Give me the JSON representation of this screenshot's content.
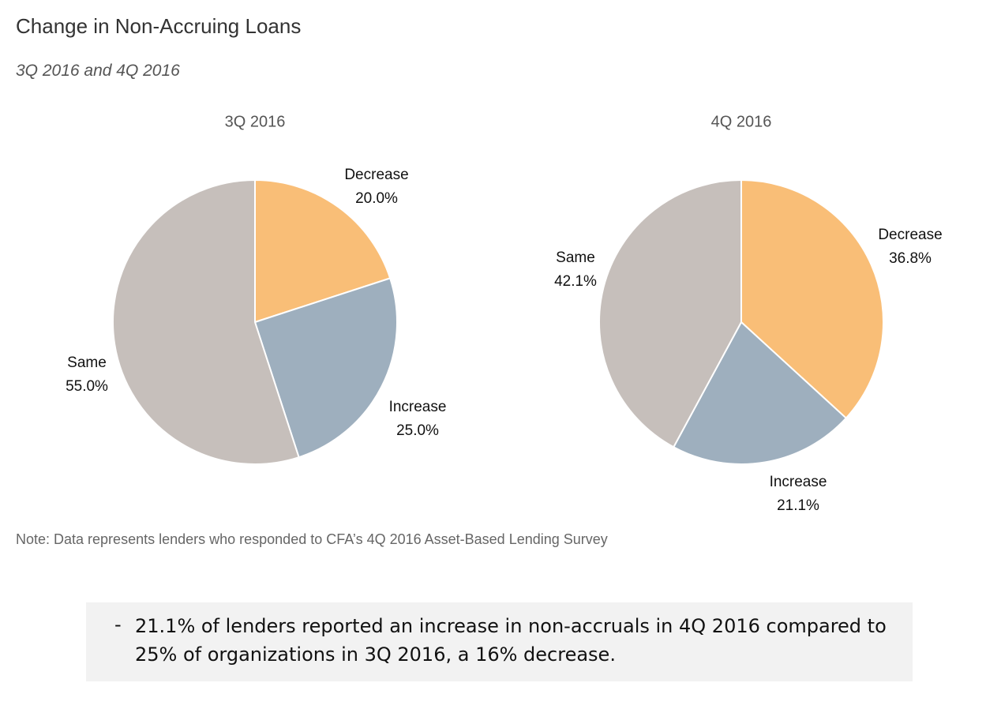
{
  "title": "Change in Non-Accruing Loans",
  "subtitle": "3Q 2016 and 4Q 2016",
  "colors": {
    "Decrease": "#f9be77",
    "Increase": "#9eafbe",
    "Same": "#c6bfbb"
  },
  "chart_data": [
    {
      "type": "pie",
      "title": "3Q 2016",
      "start_angle_deg": 0,
      "direction": "clockwise",
      "slices": [
        {
          "label": "Decrease",
          "value": 20.0,
          "display": "20.0%"
        },
        {
          "label": "Increase",
          "value": 25.0,
          "display": "25.0%"
        },
        {
          "label": "Same",
          "value": 55.0,
          "display": "55.0%"
        }
      ]
    },
    {
      "type": "pie",
      "title": "4Q 2016",
      "start_angle_deg": 0,
      "direction": "clockwise",
      "slices": [
        {
          "label": "Decrease",
          "value": 36.8,
          "display": "36.8%"
        },
        {
          "label": "Increase",
          "value": 21.1,
          "display": "21.1%"
        },
        {
          "label": "Same",
          "value": 42.1,
          "display": "42.1%"
        }
      ]
    }
  ],
  "note": "Note: Data represents lenders who responded to CFA’s 4Q 2016 Asset-Based Lending Survey",
  "callout": {
    "bullet": "-",
    "text": "21.1% of lenders reported an increase in non-accruals in 4Q 2016 compared to 25% of organizations in 3Q 2016, a 16% decrease."
  }
}
